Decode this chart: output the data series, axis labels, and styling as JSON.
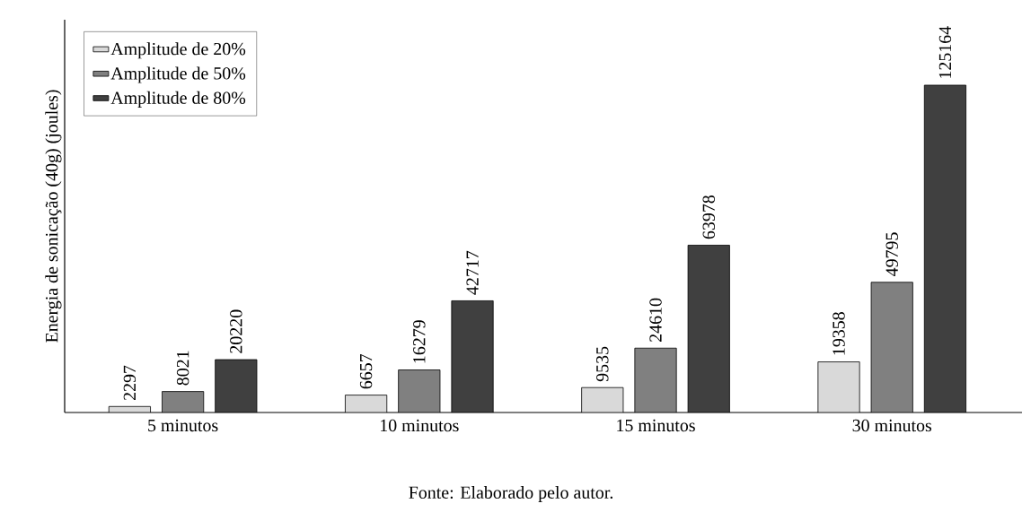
{
  "chart_data": {
    "type": "bar",
    "ylabel": "Energia de sonicação (40g) (joules)",
    "categories": [
      "5 minutos",
      "10 minutos",
      "15 minutos",
      "30 minutos"
    ],
    "series": [
      {
        "name": "Amplitude de 20%",
        "color": "#d9d9d9",
        "values": [
          2297,
          6657,
          9535,
          19358
        ]
      },
      {
        "name": "Amplitude de 50%",
        "color": "#808080",
        "values": [
          8021,
          16279,
          24610,
          49795
        ]
      },
      {
        "name": "Amplitude de 80%",
        "color": "#404040",
        "values": [
          20220,
          42717,
          63978,
          125164
        ]
      }
    ],
    "data_labels": true,
    "legend": "top left",
    "annotations": [
      "Fonte: Elaborado pelo autor."
    ]
  }
}
